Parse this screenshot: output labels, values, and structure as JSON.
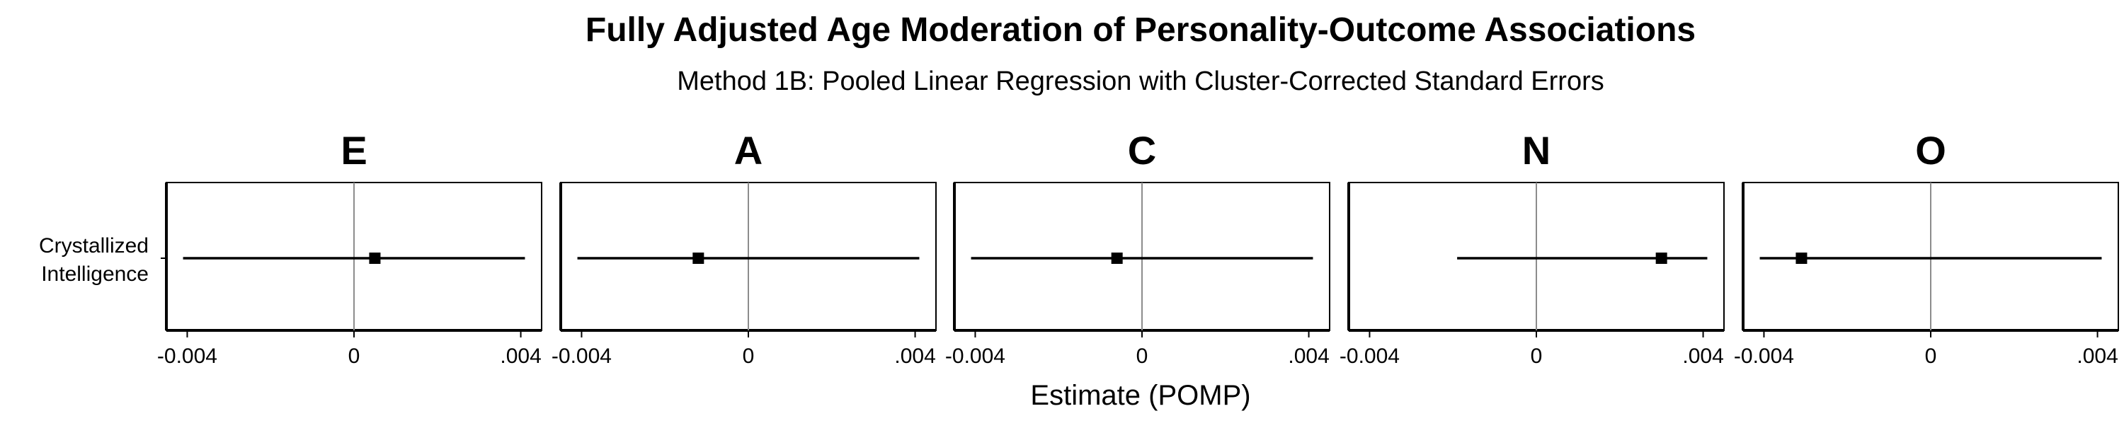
{
  "chart_data": {
    "type": "forest",
    "title": "Fully Adjusted Age Moderation of Personality-Outcome Associations",
    "subtitle": "Method 1B: Pooled Linear Regression with Cluster-Corrected Standard Errors",
    "xlabel": "Estimate (POMP)",
    "row_labels": [
      "Crystallized",
      "Intelligence"
    ],
    "xlim": [
      -0.0045,
      0.0045
    ],
    "ticks": [
      -0.004,
      0,
      0.004
    ],
    "tick_labels": [
      "-0.004",
      "0",
      ".004"
    ],
    "reference_line": 0,
    "grid": false,
    "panels": [
      {
        "name": "E",
        "estimate": 0.0005,
        "ci_low": -0.0041,
        "ci_high": 0.0041
      },
      {
        "name": "A",
        "estimate": -0.0012,
        "ci_low": -0.0041,
        "ci_high": 0.0041
      },
      {
        "name": "C",
        "estimate": -0.0006,
        "ci_low": -0.0041,
        "ci_high": 0.0041
      },
      {
        "name": "N",
        "estimate": 0.003,
        "ci_low": -0.0019,
        "ci_high": 0.0041
      },
      {
        "name": "O",
        "estimate": -0.0031,
        "ci_low": -0.0041,
        "ci_high": 0.0041
      }
    ]
  }
}
